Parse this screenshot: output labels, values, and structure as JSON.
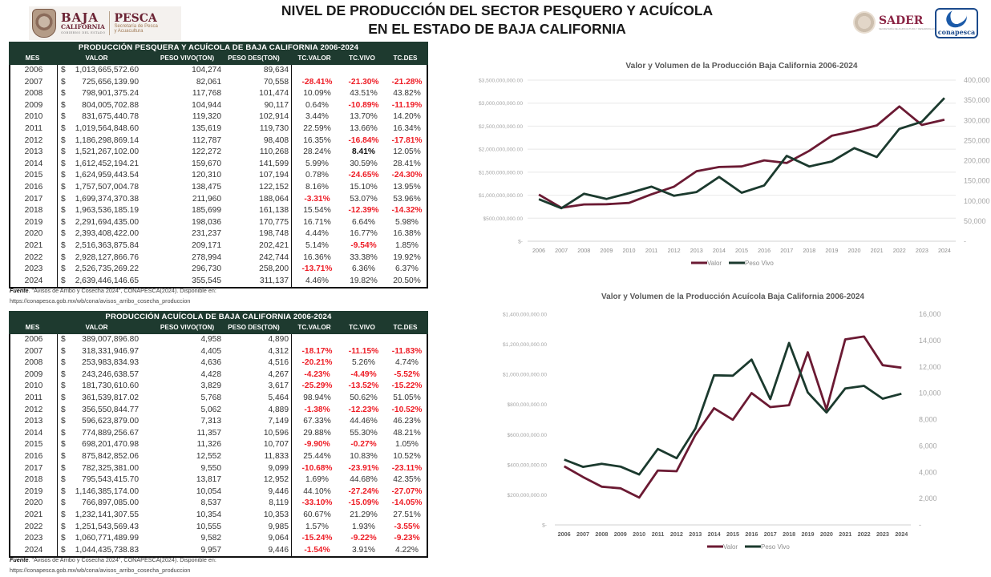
{
  "header": {
    "title_line1": "NIVEL DE PRODUCCIÓN DEL SECTOR PESQUERO Y ACUÍCOLA",
    "title_line2": "EN EL ESTADO DE BAJA CALIFORNIA",
    "logo_left": {
      "name1": "BAJA",
      "name2": "CALIFORNIA",
      "name3": "GOBIERNO DEL ESTADO",
      "secretaria": "PESCA",
      "secretaria_sub1": "Secretaría de Pesca",
      "secretaria_sub2": "y Acuacultura"
    },
    "logo_sader": {
      "name": "SADER",
      "sub": "SECRETARÍA DE AGRICULTURA Y DESARROLLO RURAL"
    },
    "logo_conapesca": {
      "name": "conapesca"
    }
  },
  "colors": {
    "header_bg": "#1e3a2f",
    "negative": "#ee1c25",
    "valor_line": "#6b1a33",
    "peso_line": "#1b3a2e",
    "grid": "#eeeeee"
  },
  "tables": [
    {
      "title": "PRODUCCIÓN PESQUERA Y ACUÍCOLA DE BAJA CALIFORNIA 2006-2024",
      "columns": [
        "MES",
        "VALOR",
        "PESO VIVO(TON)",
        "PESO DES(TON)",
        "TC.VALOR",
        "TC.VIVO",
        "TC.DES"
      ],
      "rows": [
        {
          "mes": "2006",
          "sign": "$",
          "valor": "1,013,665,572.60",
          "vivo": "104,274",
          "des": "89,634",
          "tcv": "",
          "tcvi": "",
          "tcd": ""
        },
        {
          "mes": "2007",
          "sign": "$",
          "valor": "725,656,139.90",
          "vivo": "82,061",
          "des": "70,558",
          "tcv": "-28.41%",
          "tcvi": "-21.30%",
          "tcd": "-21.28%"
        },
        {
          "mes": "2008",
          "sign": "$",
          "valor": "798,901,375.24",
          "vivo": "117,768",
          "des": "101,474",
          "tcv": "10.09%",
          "tcvi": "43.51%",
          "tcd": "43.82%"
        },
        {
          "mes": "2009",
          "sign": "$",
          "valor": "804,005,702.88",
          "vivo": "104,944",
          "des": "90,117",
          "tcv": "0.64%",
          "tcvi": "-10.89%",
          "tcd": "-11.19%"
        },
        {
          "mes": "2010",
          "sign": "$",
          "valor": "831,675,440.78",
          "vivo": "119,320",
          "des": "102,914",
          "tcv": "3.44%",
          "tcvi": "13.70%",
          "tcd": "14.20%"
        },
        {
          "mes": "2011",
          "sign": "$",
          "valor": "1,019,564,848.60",
          "vivo": "135,619",
          "des": "119,730",
          "tcv": "22.59%",
          "tcvi": "13.66%",
          "tcd": "16.34%"
        },
        {
          "mes": "2012",
          "sign": "$",
          "valor": "1,186,298,869.14",
          "vivo": "112,787",
          "des": "98,408",
          "tcv": "16.35%",
          "tcvi": "-16.84%",
          "tcd": "-17.81%"
        },
        {
          "mes": "2013",
          "sign": "$",
          "valor": "1,521,267,102.00",
          "vivo": "122,272",
          "des": "110,268",
          "tcv": "28.24%",
          "tcvi": "8.41%",
          "tcd": "12.05%",
          "tcvi_bold": true
        },
        {
          "mes": "2014",
          "sign": "$",
          "valor": "1,612,452,194.21",
          "vivo": "159,670",
          "des": "141,599",
          "tcv": "5.99%",
          "tcvi": "30.59%",
          "tcd": "28.41%"
        },
        {
          "mes": "2015",
          "sign": "$",
          "valor": "1,624,959,443.54",
          "vivo": "120,310",
          "des": "107,194",
          "tcv": "0.78%",
          "tcvi": "-24.65%",
          "tcd": "-24.30%"
        },
        {
          "mes": "2016",
          "sign": "$",
          "valor": "1,757,507,004.78",
          "vivo": "138,475",
          "des": "122,152",
          "tcv": "8.16%",
          "tcvi": "15.10%",
          "tcd": "13.95%"
        },
        {
          "mes": "2017",
          "sign": "$",
          "valor": "1,699,374,370.38",
          "vivo": "211,960",
          "des": "188,064",
          "tcv": "-3.31%",
          "tcvi": "53.07%",
          "tcd": "53.96%"
        },
        {
          "mes": "2018",
          "sign": "$",
          "valor": "1,963,536,185.19",
          "vivo": "185,699",
          "des": "161,138",
          "tcv": "15.54%",
          "tcvi": "-12.39%",
          "tcd": "-14.32%"
        },
        {
          "mes": "2019",
          "sign": "$",
          "valor": "2,291,694,435.00",
          "vivo": "198,036",
          "des": "170,775",
          "tcv": "16.71%",
          "tcvi": "6.64%",
          "tcd": "5.98%"
        },
        {
          "mes": "2020",
          "sign": "$",
          "valor": "2,393,408,422.00",
          "vivo": "231,237",
          "des": "198,748",
          "tcv": "4.44%",
          "tcvi": "16.77%",
          "tcd": "16.38%"
        },
        {
          "mes": "2021",
          "sign": "$",
          "valor": "2,516,363,875.84",
          "vivo": "209,171",
          "des": "202,421",
          "tcv": "5.14%",
          "tcvi": "-9.54%",
          "tcd": "1.85%"
        },
        {
          "mes": "2022",
          "sign": "$",
          "valor": "2,928,127,866.76",
          "vivo": "278,994",
          "des": "242,744",
          "tcv": "16.36%",
          "tcvi": "33.38%",
          "tcd": "19.92%"
        },
        {
          "mes": "2023",
          "sign": "$",
          "valor": "2,526,735,269.22",
          "vivo": "296,730",
          "des": "258,200",
          "tcv": "-13.71%",
          "tcvi": "6.36%",
          "tcd": "6.37%"
        },
        {
          "mes": "2024",
          "sign": "$",
          "valor": "2,639,446,146.65",
          "vivo": "355,545",
          "des": "311,137",
          "tcv": "4.46%",
          "tcvi": "19.82%",
          "tcd": "20.50%"
        }
      ],
      "source_label": "Fuente",
      "source_text": ". \"Avisos de Arribo y Cosecha 2024\", CONAPESCA(2024). Disponible en:",
      "source_url": "https://conapesca.gob.mx/wb/cona/avisos_arribo_cosecha_produccion"
    },
    {
      "title": "PRODUCCIÓN ACUÍCOLA DE BAJA CALIFORNIA 2006-2024",
      "columns": [
        "MES",
        "VALOR",
        "PESO VIVO(TON)",
        "PESO DES(TON)",
        "TC.VALOR",
        "TC.VIVO",
        "TC.DES"
      ],
      "rows": [
        {
          "mes": "2006",
          "sign": "$",
          "valor": "389,007,896.80",
          "vivo": "4,958",
          "des": "4,890",
          "tcv": "",
          "tcvi": "",
          "tcd": ""
        },
        {
          "mes": "2007",
          "sign": "$",
          "valor": "318,331,946.97",
          "vivo": "4,405",
          "des": "4,312",
          "tcv": "-18.17%",
          "tcvi": "-11.15%",
          "tcd": "-11.83%"
        },
        {
          "mes": "2008",
          "sign": "$",
          "valor": "253,983,834.93",
          "vivo": "4,636",
          "des": "4,516",
          "tcv": "-20.21%",
          "tcvi": "5.26%",
          "tcd": "4.74%"
        },
        {
          "mes": "2009",
          "sign": "$",
          "valor": "243,246,638.57",
          "vivo": "4,428",
          "des": "4,267",
          "tcv": "-4.23%",
          "tcvi": "-4.49%",
          "tcd": "-5.52%"
        },
        {
          "mes": "2010",
          "sign": "$",
          "valor": "181,730,610.60",
          "vivo": "3,829",
          "des": "3,617",
          "tcv": "-25.29%",
          "tcvi": "-13.52%",
          "tcd": "-15.22%"
        },
        {
          "mes": "2011",
          "sign": "$",
          "valor": "361,539,817.02",
          "vivo": "5,768",
          "des": "5,464",
          "tcv": "98.94%",
          "tcvi": "50.62%",
          "tcd": "51.05%"
        },
        {
          "mes": "2012",
          "sign": "$",
          "valor": "356,550,844.77",
          "vivo": "5,062",
          "des": "4,889",
          "tcv": "-1.38%",
          "tcvi": "-12.23%",
          "tcd": "-10.52%"
        },
        {
          "mes": "2013",
          "sign": "$",
          "valor": "596,623,879.00",
          "vivo": "7,313",
          "des": "7,149",
          "tcv": "67.33%",
          "tcvi": "44.46%",
          "tcd": "46.23%"
        },
        {
          "mes": "2014",
          "sign": "$",
          "valor": "774,889,256.67",
          "vivo": "11,357",
          "des": "10,596",
          "tcv": "29.88%",
          "tcvi": "55.30%",
          "tcd": "48.21%"
        },
        {
          "mes": "2015",
          "sign": "$",
          "valor": "698,201,470.98",
          "vivo": "11,326",
          "des": "10,707",
          "tcv": "-9.90%",
          "tcvi": "-0.27%",
          "tcd": "1.05%"
        },
        {
          "mes": "2016",
          "sign": "$",
          "valor": "875,842,852.06",
          "vivo": "12,552",
          "des": "11,833",
          "tcv": "25.44%",
          "tcvi": "10.83%",
          "tcd": "10.52%"
        },
        {
          "mes": "2017",
          "sign": "$",
          "valor": "782,325,381.00",
          "vivo": "9,550",
          "des": "9,099",
          "tcv": "-10.68%",
          "tcvi": "-23.91%",
          "tcd": "-23.11%"
        },
        {
          "mes": "2018",
          "sign": "$",
          "valor": "795,543,415.70",
          "vivo": "13,817",
          "des": "12,952",
          "tcv": "1.69%",
          "tcvi": "44.68%",
          "tcd": "42.35%"
        },
        {
          "mes": "2019",
          "sign": "$",
          "valor": "1,146,385,174.00",
          "vivo": "10,054",
          "des": "9,446",
          "tcv": "44.10%",
          "tcvi": "-27.24%",
          "tcd": "-27.07%"
        },
        {
          "mes": "2020",
          "sign": "$",
          "valor": "766,897,085.00",
          "vivo": "8,537",
          "des": "8,119",
          "tcv": "-33.10%",
          "tcvi": "-15.09%",
          "tcd": "-14.05%"
        },
        {
          "mes": "2021",
          "sign": "$",
          "valor": "1,232,141,307.55",
          "vivo": "10,354",
          "des": "10,353",
          "tcv": "60.67%",
          "tcvi": "21.29%",
          "tcd": "27.51%"
        },
        {
          "mes": "2022",
          "sign": "$",
          "valor": "1,251,543,569.43",
          "vivo": "10,555",
          "des": "9,985",
          "tcv": "1.57%",
          "tcvi": "1.93%",
          "tcd": "-3.55%"
        },
        {
          "mes": "2023",
          "sign": "$",
          "valor": "1,060,771,489.99",
          "vivo": "9,582",
          "des": "9,064",
          "tcv": "-15.24%",
          "tcvi": "-9.22%",
          "tcd": "-9.23%"
        },
        {
          "mes": "2024",
          "sign": "$",
          "valor": "1,044,435,738.83",
          "vivo": "9,957",
          "des": "9,446",
          "tcv": "-1.54%",
          "tcvi": "3.91%",
          "tcd": "4.22%"
        }
      ],
      "source_label": "Fuente",
      "source_text": ". \"Avisos de Arribo y Cosecha 2024\", CONAPESCA(2024). Disponible en:",
      "source_url": "https://conapesca.gob.mx/wb/cona/avisos_arribo_cosecha_produccion"
    }
  ],
  "chart_data": [
    {
      "type": "line",
      "title": "Valor y Volumen de la Producción  Baja California 2006-2024",
      "categories": [
        "2006",
        "2007",
        "2008",
        "2009",
        "2010",
        "2011",
        "2012",
        "2013",
        "2014",
        "2015",
        "2016",
        "2017",
        "2018",
        "2019",
        "2020",
        "2021",
        "2022",
        "2023",
        "2024"
      ],
      "series": [
        {
          "name": "Valor",
          "axis": "left",
          "color": "#6b1a33",
          "values": [
            1013665572.6,
            725656139.9,
            798901375.24,
            804005702.88,
            831675440.78,
            1019564848.6,
            1186298869.14,
            1521267102.0,
            1612452194.21,
            1624959443.54,
            1757507004.78,
            1699374370.38,
            1963536185.19,
            2291694435.0,
            2393408422.0,
            2516363875.84,
            2928127866.76,
            2526735269.22,
            2639446146.65
          ]
        },
        {
          "name": "Peso Vivo",
          "axis": "right",
          "color": "#1b3a2e",
          "values": [
            104274,
            82061,
            117768,
            104944,
            119320,
            135619,
            112787,
            122272,
            159670,
            120310,
            138475,
            211960,
            185699,
            198036,
            231237,
            209171,
            278994,
            296730,
            355545
          ]
        }
      ],
      "y_left": {
        "min": 0,
        "max": 3500000000,
        "step": 500000000,
        "tick_labels": [
          "$-",
          "$500,000,000.00",
          "$1,000,000,000.00",
          "$1,500,000,000.00",
          "$2,000,000,000.00",
          "$2,500,000,000.00",
          "$3,000,000,000.00",
          "$3,500,000,000.00"
        ]
      },
      "y_right": {
        "min": 0,
        "max": 400000,
        "step": 50000,
        "tick_labels": [
          "-",
          "50,000",
          "100,000",
          "150,000",
          "200,000",
          "250,000",
          "300,000",
          "350,000",
          "400,000"
        ]
      },
      "grid": true,
      "legend": "bottom"
    },
    {
      "type": "line",
      "title": "Valor y Volumen de la Producción Acuícola Baja California 2006-2024",
      "categories": [
        "2006",
        "2007",
        "2008",
        "2009",
        "2010",
        "2011",
        "2012",
        "2013",
        "2014",
        "2015",
        "2016",
        "2017",
        "2018",
        "2019",
        "2020",
        "2021",
        "2022",
        "2023",
        "2024"
      ],
      "series": [
        {
          "name": "Valor",
          "axis": "left",
          "color": "#6b1a33",
          "values": [
            389007896.8,
            318331946.97,
            253983834.93,
            243246638.57,
            181730610.6,
            361539817.02,
            356550844.77,
            596623879.0,
            774889256.67,
            698201470.98,
            875842852.06,
            782325381.0,
            795543415.7,
            1146385174.0,
            766897085.0,
            1232141307.55,
            1251543569.43,
            1060771489.99,
            1044435738.83
          ]
        },
        {
          "name": "Peso Vivo",
          "axis": "right",
          "color": "#1b3a2e",
          "values": [
            4958,
            4405,
            4636,
            4428,
            3829,
            5768,
            5062,
            7313,
            11357,
            11326,
            12552,
            9550,
            13817,
            10054,
            8537,
            10354,
            10555,
            9582,
            9957
          ]
        }
      ],
      "y_left": {
        "min": 0,
        "max": 1400000000,
        "step": 200000000,
        "tick_labels": [
          "$-",
          "$200,000,000.00",
          "$400,000,000.00",
          "$600,000,000.00",
          "$800,000,000.00",
          "$1,000,000,000.00",
          "$1,200,000,000.00",
          "$1,400,000,000.00"
        ]
      },
      "y_right": {
        "min": 0,
        "max": 16000,
        "step": 2000,
        "tick_labels": [
          "-",
          "2,000",
          "4,000",
          "6,000",
          "8,000",
          "10,000",
          "12,000",
          "14,000",
          "16,000"
        ]
      },
      "grid": false,
      "legend": "bottom"
    }
  ]
}
